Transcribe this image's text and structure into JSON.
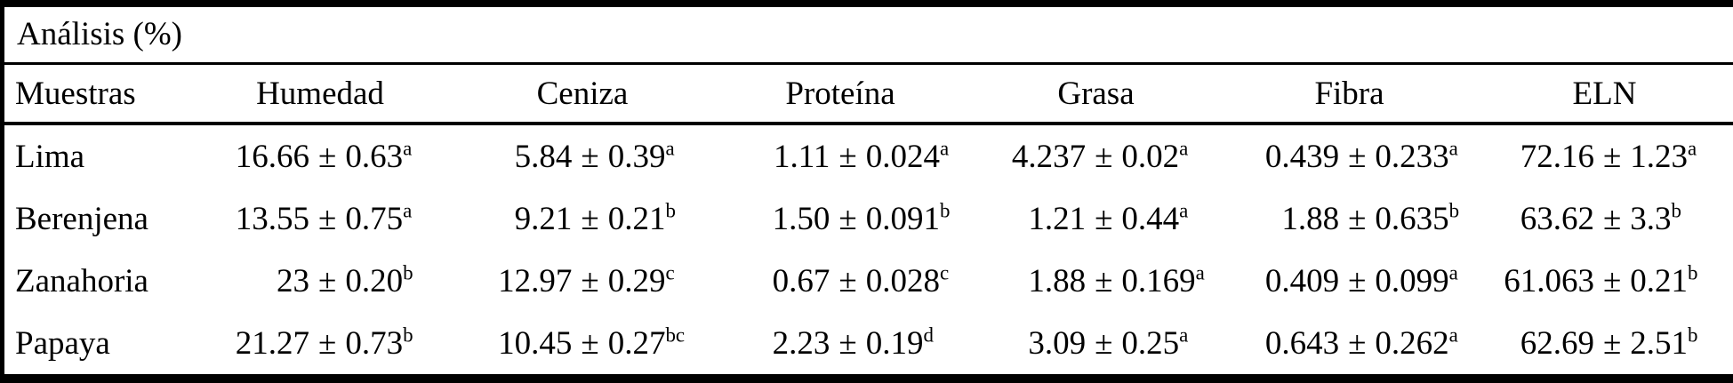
{
  "table": {
    "title": "Análisis (%)",
    "plus_minus": "±",
    "columns": [
      "Muestras",
      "Humedad",
      "Ceniza",
      "Proteína",
      "Grasa",
      "Fibra",
      "ELN"
    ],
    "rows": [
      {
        "label": "Lima",
        "values": [
          {
            "mean": "16.66",
            "sd": "0.63",
            "sup": "a"
          },
          {
            "mean": "5.84",
            "sd": "0.39",
            "sup": "a"
          },
          {
            "mean": "1.11",
            "sd": "0.024",
            "sup": "a"
          },
          {
            "mean": "4.237",
            "sd": "0.02",
            "sup": "a"
          },
          {
            "mean": "0.439",
            "sd": "0.233",
            "sup": "a"
          },
          {
            "mean": "72.16",
            "sd": "1.23",
            "sup": "a"
          }
        ]
      },
      {
        "label": "Berenjena",
        "values": [
          {
            "mean": "13.55",
            "sd": "0.75",
            "sup": "a"
          },
          {
            "mean": "9.21",
            "sd": "0.21",
            "sup": "b"
          },
          {
            "mean": "1.50",
            "sd": "0.091",
            "sup": "b"
          },
          {
            "mean": "1.21",
            "sd": "0.44",
            "sup": "a"
          },
          {
            "mean": "1.88",
            "sd": "0.635",
            "sup": "b"
          },
          {
            "mean": "63.62",
            "sd": "3.3",
            "sup": "b"
          }
        ]
      },
      {
        "label": "Zanahoria",
        "values": [
          {
            "mean": "23",
            "sd": "0.20",
            "sup": "b"
          },
          {
            "mean": "12.97",
            "sd": "0.29",
            "sup": "c"
          },
          {
            "mean": "0.67",
            "sd": "0.028",
            "sup": "c"
          },
          {
            "mean": "1.88",
            "sd": "0.169",
            "sup": "a"
          },
          {
            "mean": "0.409",
            "sd": "0.099",
            "sup": "a"
          },
          {
            "mean": "61.063",
            "sd": "0.21",
            "sup": "b"
          }
        ]
      },
      {
        "label": "Papaya",
        "values": [
          {
            "mean": "21.27",
            "sd": "0.73",
            "sup": "b"
          },
          {
            "mean": "10.45",
            "sd": "0.27",
            "sup": "bc"
          },
          {
            "mean": "2.23",
            "sd": "0.19",
            "sup": "d"
          },
          {
            "mean": "3.09",
            "sd": "0.25",
            "sup": "a"
          },
          {
            "mean": "0.643",
            "sd": "0.262",
            "sup": "a"
          },
          {
            "mean": "62.69",
            "sd": "2.51",
            "sup": "b"
          }
        ]
      }
    ]
  },
  "colors": {
    "background": "#ffffff",
    "text": "#000000",
    "border": "#000000"
  }
}
